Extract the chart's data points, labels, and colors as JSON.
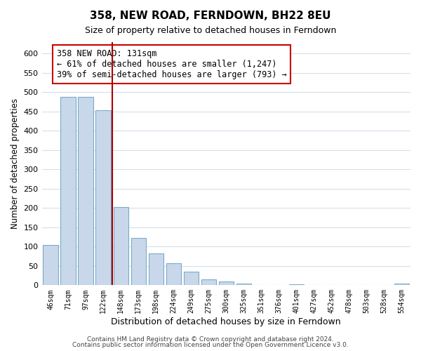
{
  "title": "358, NEW ROAD, FERNDOWN, BH22 8EU",
  "subtitle": "Size of property relative to detached houses in Ferndown",
  "xlabel": "Distribution of detached houses by size in Ferndown",
  "ylabel": "Number of detached properties",
  "bar_labels": [
    "46sqm",
    "71sqm",
    "97sqm",
    "122sqm",
    "148sqm",
    "173sqm",
    "198sqm",
    "224sqm",
    "249sqm",
    "275sqm",
    "300sqm",
    "325sqm",
    "351sqm",
    "376sqm",
    "401sqm",
    "427sqm",
    "452sqm",
    "478sqm",
    "503sqm",
    "528sqm",
    "554sqm"
  ],
  "bar_values": [
    105,
    488,
    488,
    453,
    202,
    122,
    83,
    57,
    36,
    16,
    9,
    5,
    0,
    0,
    3,
    0,
    0,
    0,
    0,
    0,
    5
  ],
  "bar_color": "#c8d8ea",
  "bar_edge_color": "#7aaac8",
  "highlight_bar_index": 3,
  "highlight_line_color": "#aa0000",
  "annotation_title": "358 NEW ROAD: 131sqm",
  "annotation_line1": "← 61% of detached houses are smaller (1,247)",
  "annotation_line2": "39% of semi-detached houses are larger (793) →",
  "annotation_box_color": "#ffffff",
  "annotation_box_edge_color": "#cc0000",
  "ylim": [
    0,
    630
  ],
  "yticks": [
    0,
    50,
    100,
    150,
    200,
    250,
    300,
    350,
    400,
    450,
    500,
    550,
    600
  ],
  "footnote1": "Contains HM Land Registry data © Crown copyright and database right 2024.",
  "footnote2": "Contains public sector information licensed under the Open Government Licence v3.0.",
  "background_color": "#ffffff",
  "grid_color": "#d0dce8"
}
